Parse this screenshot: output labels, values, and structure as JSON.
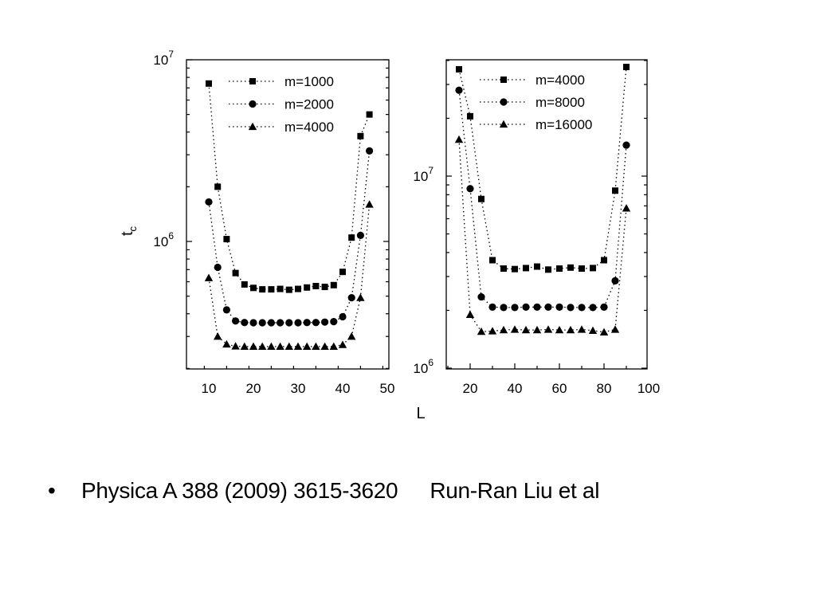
{
  "caption": {
    "bullet": "•",
    "citation": "Physica A 388 (2009) 3615-3620",
    "authors": "Run-Ran Liu  et al"
  },
  "chart_data": [
    {
      "type": "scatter",
      "panel": "left",
      "title": "",
      "xlabel": "L",
      "ylabel": "t",
      "ylabel_subscript": "c",
      "xlim": [
        4,
        50
      ],
      "ylim": [
        200000,
        10000000
      ],
      "yscale": "log",
      "x_ticks": [
        10,
        20,
        30,
        40,
        50
      ],
      "y_ticks": [
        {
          "value": 1000000,
          "base": "10",
          "exp": "6"
        },
        {
          "value": 10000000,
          "base": "10",
          "exp": "7"
        }
      ],
      "grid": false,
      "legend_position": "top-right",
      "line_style": "dotted",
      "series": [
        {
          "name": "m=1000",
          "marker": "square",
          "x": [
            10,
            12,
            14,
            16,
            18,
            20,
            22,
            24,
            26,
            28,
            30,
            32,
            34,
            36,
            38,
            40,
            42,
            44,
            46
          ],
          "y": [
            7400000,
            2000000,
            1030000,
            670000,
            580000,
            555000,
            545000,
            545000,
            548000,
            542000,
            548000,
            558000,
            568000,
            562000,
            575000,
            680000,
            1050000,
            3800000,
            5000000
          ]
        },
        {
          "name": "m=2000",
          "marker": "circle",
          "x": [
            10,
            12,
            14,
            16,
            18,
            20,
            22,
            24,
            26,
            28,
            30,
            32,
            34,
            36,
            38,
            40,
            42,
            44,
            46
          ],
          "y": [
            1650000,
            720000,
            420000,
            365000,
            358000,
            357000,
            357000,
            357000,
            357000,
            357000,
            357000,
            358000,
            358000,
            360000,
            362000,
            385000,
            490000,
            1080000,
            3150000
          ]
        },
        {
          "name": "m=4000",
          "marker": "triangle",
          "x": [
            10,
            12,
            14,
            16,
            18,
            20,
            22,
            24,
            26,
            28,
            30,
            32,
            34,
            36,
            38,
            40,
            42,
            44,
            46
          ],
          "y": [
            630000,
            300000,
            272000,
            265000,
            264000,
            264000,
            264000,
            264000,
            264000,
            264000,
            264000,
            264000,
            264000,
            264000,
            264000,
            270000,
            300000,
            490000,
            1600000
          ]
        }
      ]
    },
    {
      "type": "scatter",
      "panel": "right",
      "title": "",
      "xlabel": "",
      "ylabel": "",
      "xlim": [
        10,
        100
      ],
      "ylim": [
        1000000,
        45000000
      ],
      "yscale": "log",
      "x_ticks": [
        20,
        40,
        60,
        80,
        100
      ],
      "y_ticks": [
        {
          "value": 1000000,
          "base": "10",
          "exp": "6"
        },
        {
          "value": 10000000,
          "base": "10",
          "exp": "7"
        }
      ],
      "grid": false,
      "legend_position": "top-right",
      "line_style": "dotted",
      "series": [
        {
          "name": "m=4000",
          "marker": "square",
          "x": [
            15,
            20,
            25,
            30,
            35,
            40,
            45,
            50,
            55,
            60,
            65,
            70,
            75,
            80,
            85,
            90
          ],
          "y": [
            36000000,
            20500000,
            7600000,
            3650000,
            3300000,
            3280000,
            3320000,
            3380000,
            3260000,
            3300000,
            3340000,
            3300000,
            3320000,
            3650000,
            8400000,
            37000000
          ]
        },
        {
          "name": "m=8000",
          "marker": "circle",
          "x": [
            15,
            20,
            25,
            30,
            35,
            40,
            45,
            50,
            55,
            60,
            65,
            70,
            75,
            80,
            85,
            90
          ],
          "y": [
            28000000,
            8600000,
            2350000,
            2080000,
            2070000,
            2070000,
            2080000,
            2080000,
            2080000,
            2080000,
            2070000,
            2070000,
            2070000,
            2080000,
            2850000,
            14500000
          ]
        },
        {
          "name": "m=16000",
          "marker": "triangle",
          "x": [
            15,
            20,
            25,
            30,
            35,
            40,
            45,
            50,
            55,
            60,
            65,
            70,
            75,
            80,
            85,
            90
          ],
          "y": [
            15500000,
            1900000,
            1550000,
            1560000,
            1580000,
            1590000,
            1580000,
            1580000,
            1590000,
            1580000,
            1580000,
            1590000,
            1570000,
            1540000,
            1590000,
            6800000
          ]
        }
      ]
    }
  ]
}
